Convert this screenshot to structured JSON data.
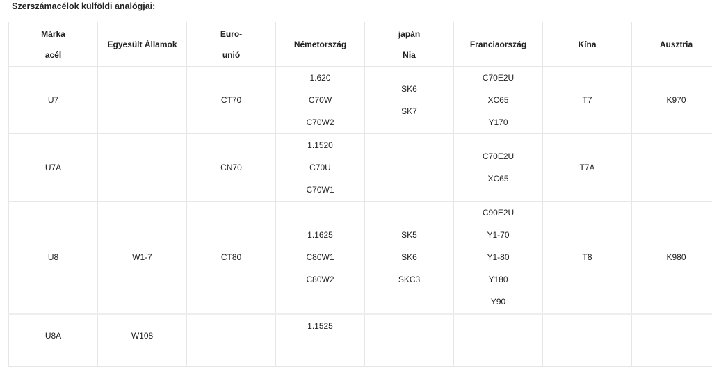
{
  "title": "Szerszámacélok külföldi analógjai:",
  "headers": [
    [
      "Márka",
      "acél"
    ],
    [
      "Egyesült Államok"
    ],
    [
      "Euro-",
      "unió"
    ],
    [
      "Németország"
    ],
    [
      "japán",
      "Nia"
    ],
    [
      "Franciaország"
    ],
    [
      "Kína"
    ],
    [
      "Ausztria"
    ]
  ],
  "rows": [
    [
      [
        "U7"
      ],
      [],
      [
        "CT70"
      ],
      [
        "1.620",
        "C70W",
        "C70W2"
      ],
      [
        "SK6",
        "SK7"
      ],
      [
        "C70E2U",
        "XC65",
        "Y170"
      ],
      [
        "T7"
      ],
      [
        "K970"
      ]
    ],
    [
      [
        "U7A"
      ],
      [],
      [
        "CN70"
      ],
      [
        "1.1520",
        "C70U",
        "C70W1"
      ],
      [],
      [
        "C70E2U",
        "XC65"
      ],
      [
        "T7A"
      ],
      []
    ],
    [
      [
        "U8"
      ],
      [
        "W1-7"
      ],
      [
        "CT80"
      ],
      [
        "1.1625",
        "C80W1",
        "C80W2"
      ],
      [
        "SK5",
        "SK6",
        "SKC3"
      ],
      [
        "C90E2U",
        "Y1-70",
        "Y1-80",
        "Y180",
        "Y90"
      ],
      [
        "T8"
      ],
      [
        "K980"
      ]
    ],
    [
      [
        "U8A"
      ],
      [
        "W108"
      ],
      [],
      [
        "1.1525"
      ],
      [],
      [],
      [],
      []
    ]
  ]
}
